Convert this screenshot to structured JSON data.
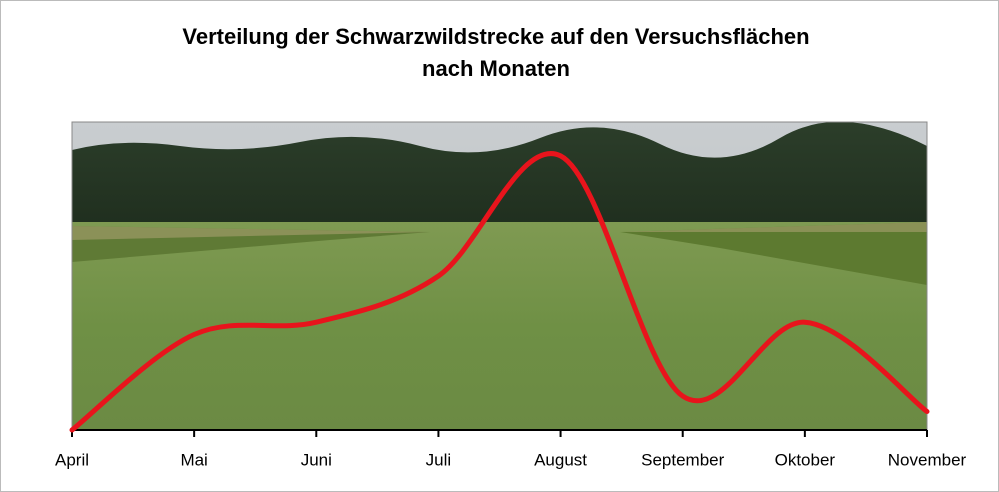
{
  "chart_data": {
    "type": "line",
    "title": [
      "Verteilung der Schwarzwildstrecke auf den Versuchsflächen",
      "nach Monaten"
    ],
    "categories": [
      "April",
      "Mai",
      "Juni",
      "Juli",
      "August",
      "September",
      "Oktober",
      "November"
    ],
    "values": [
      0,
      31,
      35,
      50,
      89,
      11,
      35,
      6
    ],
    "color": "#e8141c",
    "ylim": [
      0,
      100
    ]
  }
}
